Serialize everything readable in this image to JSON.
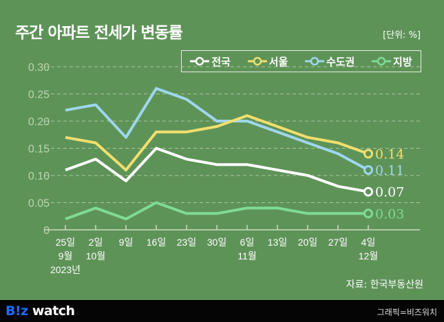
{
  "header": {
    "title": "주간 아파트 전세가 변동률",
    "unit": "[단위: %]"
  },
  "chart_data": {
    "type": "line",
    "title": "주간 아파트 전세가 변동률",
    "unit_label": "[단위: %]",
    "categories": [
      [
        "25일",
        "9월",
        "2023년"
      ],
      [
        "2일",
        "10월"
      ],
      [
        "9일"
      ],
      [
        "16일"
      ],
      [
        "23일"
      ],
      [
        "30일"
      ],
      [
        "6일",
        "11월"
      ],
      [
        "13일"
      ],
      [
        "20일"
      ],
      [
        "27일"
      ],
      [
        "4일",
        "12월"
      ]
    ],
    "ylim": [
      0,
      0.3
    ],
    "yticks": [
      "0",
      "0.05",
      "0.10",
      "0.15",
      "0.20",
      "0.25",
      "0.30"
    ],
    "grid": true,
    "legend": "top-right",
    "series": [
      {
        "name": "전국",
        "color": "#ffffff",
        "values": [
          0.11,
          0.13,
          0.09,
          0.15,
          0.13,
          0.12,
          0.12,
          0.11,
          0.1,
          0.08,
          0.07
        ],
        "end_label": "0.07"
      },
      {
        "name": "서울",
        "color": "#f2df6e",
        "values": [
          0.17,
          0.16,
          0.11,
          0.18,
          0.18,
          0.19,
          0.21,
          0.19,
          0.17,
          0.16,
          0.14
        ],
        "end_label": "0.14"
      },
      {
        "name": "수도권",
        "color": "#9fd6ee",
        "values": [
          0.22,
          0.23,
          0.17,
          0.26,
          0.24,
          0.2,
          0.2,
          0.18,
          0.16,
          0.14,
          0.11
        ],
        "end_label": "0.11"
      },
      {
        "name": "지방",
        "color": "#7fdb93",
        "values": [
          0.02,
          0.04,
          0.02,
          0.05,
          0.03,
          0.03,
          0.04,
          0.04,
          0.03,
          0.03,
          0.03
        ],
        "end_label": "0.03"
      }
    ]
  },
  "source": "자료: 한국부동산원",
  "footer": {
    "logo_b": "B!z",
    "logo_rest": " watch",
    "credit": "그래픽=비즈워치"
  }
}
